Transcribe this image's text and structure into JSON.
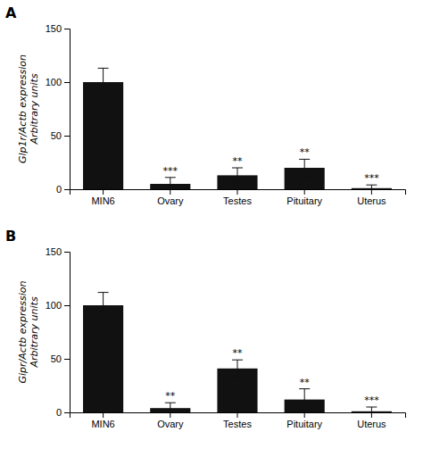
{
  "chart_data": [
    {
      "type": "bar",
      "title": "A",
      "categories": [
        "MIN6",
        "Ovary",
        "Testes",
        "Pituitary",
        "Uterus"
      ],
      "values": [
        100,
        5,
        13,
        20,
        1
      ],
      "errors": [
        13,
        6,
        7,
        8,
        3
      ],
      "annotations": [
        {
          "x": "Ovary",
          "text": "***"
        },
        {
          "x": "Testes",
          "text": "**"
        },
        {
          "x": "Pituitary",
          "text": "**"
        },
        {
          "x": "Uterus",
          "text": "***"
        }
      ],
      "ylabel": [
        "Glp1r/Actb expression",
        "Arbitrary units"
      ],
      "color": "#111111",
      "ylim": [
        0,
        150
      ],
      "yticks": [
        0,
        50,
        100,
        150
      ],
      "grid": false
    },
    {
      "type": "bar",
      "title": "B",
      "categories": [
        "MIN6",
        "Ovary",
        "Testes",
        "Pituitary",
        "Uterus"
      ],
      "values": [
        100,
        4,
        41,
        12,
        1
      ],
      "errors": [
        12,
        5,
        8,
        10,
        4
      ],
      "annotations": [
        {
          "x": "Ovary",
          "text": "**"
        },
        {
          "x": "Testes",
          "text": "**"
        },
        {
          "x": "Pituitary",
          "text": "**"
        },
        {
          "x": "Uterus",
          "text": "***"
        }
      ],
      "ylabel": [
        "Gipr/Actb expression",
        "Arbitrary units"
      ],
      "color": "#111111",
      "ylim": [
        0,
        150
      ],
      "yticks": [
        0,
        50,
        100,
        150
      ],
      "grid": false
    }
  ]
}
